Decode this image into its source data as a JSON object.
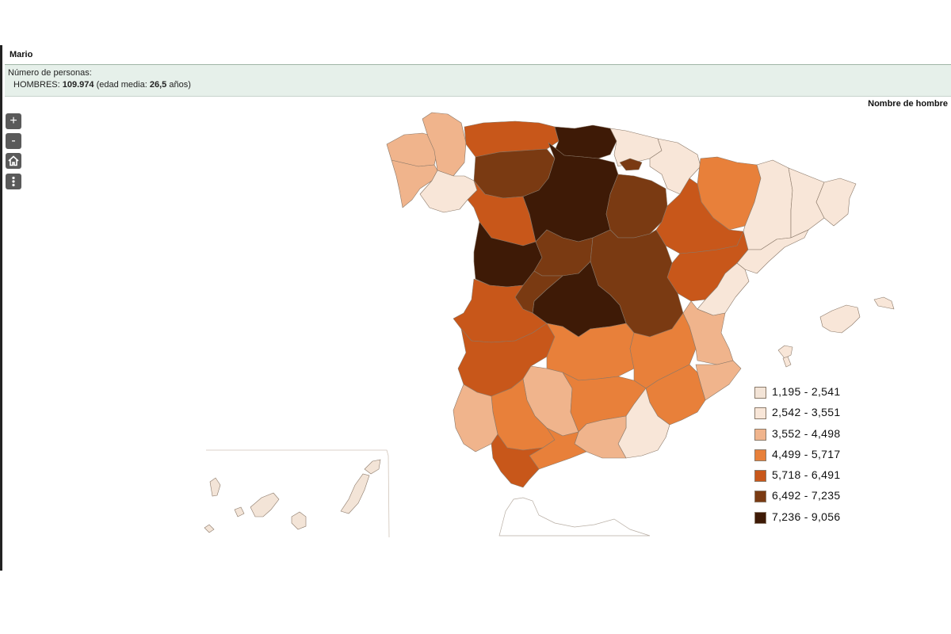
{
  "header": {
    "name": "Mario",
    "count_label": "Número de personas:",
    "men_label": "HOMBRES:",
    "men_value": "109.974",
    "age_prefix": "(edad media:",
    "age_value": "26,5",
    "age_suffix": "años)"
  },
  "map": {
    "title": "Nombre de hombre",
    "controls": [
      {
        "name": "zoom-in-button",
        "icon": "plus-icon",
        "label": "+"
      },
      {
        "name": "zoom-out-button",
        "icon": "minus-icon",
        "label": "-"
      },
      {
        "name": "home-button",
        "icon": "home-icon",
        "label": ""
      },
      {
        "name": "more-options-button",
        "icon": "vertical-dots-icon",
        "label": ""
      }
    ],
    "colors": [
      "#f3e4d7",
      "#f8e6d8",
      "#f0b48c",
      "#e8803a",
      "#c8571a",
      "#7a3a12",
      "#3e1a06"
    ],
    "legend": [
      {
        "label": "1,195 - 2,541",
        "color": "#f3e4d7"
      },
      {
        "label": "2,542 - 3,551",
        "color": "#f8e6d8"
      },
      {
        "label": "3,552 - 4,498",
        "color": "#f0b48c"
      },
      {
        "label": "4,499 - 5,717",
        "color": "#e8803a"
      },
      {
        "label": "5,718 - 6,491",
        "color": "#c8571a"
      },
      {
        "label": "6,492 - 7,235",
        "color": "#7a3a12"
      },
      {
        "label": "7,236 - 9,056",
        "color": "#3e1a06"
      }
    ]
  }
}
